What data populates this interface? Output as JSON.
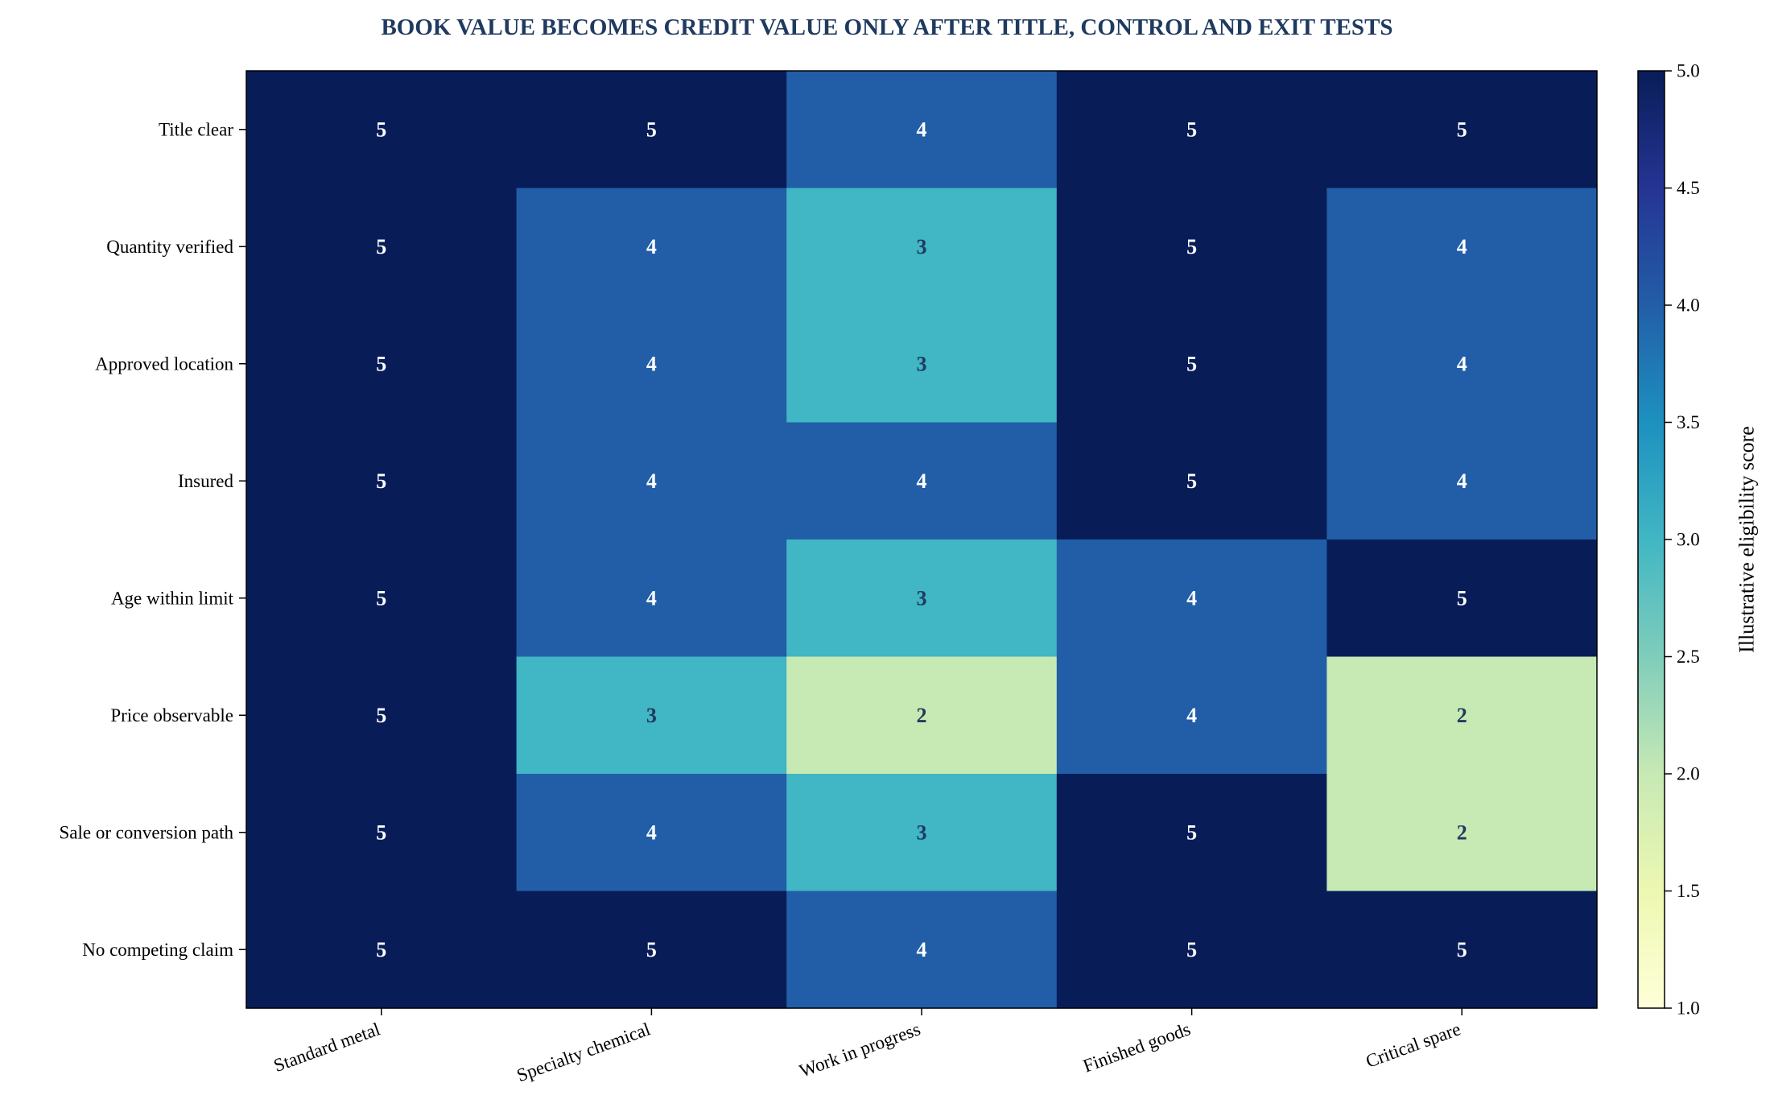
{
  "chart_data": {
    "type": "heatmap",
    "title": "BOOK VALUE BECOMES CREDIT VALUE ONLY AFTER TITLE, CONTROL AND EXIT TESTS",
    "title_color": "#1f3a5f",
    "x_categories": [
      "Standard metal",
      "Specialty chemical",
      "Work in progress",
      "Finished goods",
      "Critical spare"
    ],
    "y_categories": [
      "Title clear",
      "Quantity verified",
      "Approved location",
      "Insured",
      "Age within limit",
      "Price observable",
      "Sale or conversion path",
      "No competing claim"
    ],
    "values": [
      [
        5,
        5,
        4,
        5,
        5
      ],
      [
        5,
        4,
        3,
        5,
        4
      ],
      [
        5,
        4,
        3,
        5,
        4
      ],
      [
        5,
        4,
        4,
        5,
        4
      ],
      [
        5,
        4,
        3,
        4,
        5
      ],
      [
        5,
        3,
        2,
        4,
        2
      ],
      [
        5,
        4,
        3,
        5,
        2
      ],
      [
        5,
        5,
        4,
        5,
        5
      ]
    ],
    "colormap": "YlGnBu",
    "vmin": 1,
    "vmax": 5,
    "colorbar_label": "Illustrative eligibility score",
    "colorbar_ticks": [
      "1.0",
      "1.5",
      "2.0",
      "2.5",
      "3.0",
      "3.5",
      "4.0",
      "4.5",
      "5.0"
    ],
    "annotations": true,
    "light_text_color": "#ffffff",
    "dark_text_color": "#1f3a5f",
    "grid": false
  }
}
